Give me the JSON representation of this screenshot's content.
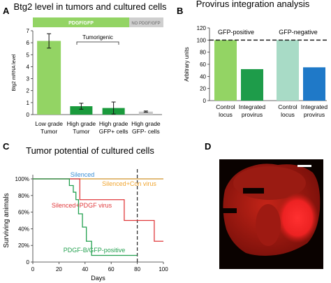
{
  "panels": {
    "A": {
      "letter": "A",
      "title": "Btg2 level in tumors and cultured cells",
      "legend_gfp": "PDGF/GFP",
      "legend_nogfp": "NO PDGF/GFP",
      "bracket_label": "Tumorigenic",
      "colors": {
        "light_green": "#93d464",
        "dark_green": "#1a9a3c",
        "grey": "#b9b9b9",
        "error": "#111111"
      }
    },
    "B": {
      "letter": "B",
      "title": "Provirus integration analysis",
      "label_pos": "GFP-positive",
      "label_neg": "GFP-negative",
      "colors": {
        "light_green": "#93d464",
        "dark_green": "#1e9c4a",
        "mint": "#a8dbc6",
        "blue": "#1f79c8"
      }
    },
    "C": {
      "letter": "C",
      "title": "Tumor potential of cultured cells",
      "annotations": {
        "silenced": "Silenced",
        "silenced_control": "Silenced+Con virus",
        "silenced_pdgf": "Silenced+PDGF virus",
        "pdgf_gfp": "PDGF-B/GFP-positive"
      },
      "colors": {
        "silenced": "#3a8fd6",
        "silenced_control": "#f0a530",
        "silenced_pdgf": "#e0393b",
        "pdgf_gfp": "#23a04f"
      }
    },
    "D": {
      "letter": "D",
      "colors": {
        "background": "#0a0200",
        "tissue": "#b21b14",
        "tumor": "#ff2a2a",
        "scale_bar": "#ffffff"
      }
    }
  },
  "chart_data": [
    {
      "panel": "A",
      "type": "bar",
      "title": "Btg2 level in tumors and cultured cells",
      "ylabel": "Btg2 mRNA level",
      "ylim": [
        0,
        7
      ],
      "yticks": [
        "0",
        "1",
        "2",
        "3",
        "4",
        "5",
        "6",
        "7"
      ],
      "categories": [
        [
          "Low grade",
          "Tumor"
        ],
        [
          "High grade",
          "Tumor"
        ],
        [
          "High grade",
          "GFP+ cells"
        ],
        [
          "High grade",
          "GFP- cells"
        ]
      ],
      "values": [
        6.15,
        0.7,
        0.55,
        0.25
      ],
      "errors": [
        0.6,
        0.25,
        0.5,
        0.05
      ],
      "colors": [
        "#93d464",
        "#1a9a3c",
        "#1a9a3c",
        "#c8c8c8"
      ]
    },
    {
      "panel": "B",
      "type": "bar",
      "title": "Provirus integration analysis",
      "ylabel": "Arbitrary units",
      "ylim": [
        0,
        120
      ],
      "yticks": [
        "0",
        "20",
        "40",
        "60",
        "80",
        "100",
        "120"
      ],
      "reference_line": 100,
      "categories": [
        [
          "Control",
          "locus"
        ],
        [
          "Integrated",
          "provirus"
        ],
        [
          "Control",
          "locus"
        ],
        [
          "Integrated",
          "provirus"
        ]
      ],
      "values": [
        100,
        52,
        100,
        55
      ],
      "colors": [
        "#93d464",
        "#1e9c4a",
        "#a8dbc6",
        "#1f79c8"
      ]
    },
    {
      "panel": "C",
      "type": "line",
      "title": "Tumor potential of cultured cells",
      "xlabel": "Days",
      "ylabel": "Surviving animals",
      "xlim": [
        0,
        100
      ],
      "ylim": [
        0,
        100
      ],
      "xticks": [
        "0",
        "20",
        "40",
        "60",
        "80",
        "100"
      ],
      "yticks": [
        "0",
        "20%",
        "40%",
        "60%",
        "80%",
        "100%"
      ],
      "vertical_dashed_line": 80,
      "series": [
        {
          "x": [
            0,
            100
          ],
          "y": [
            100,
            100
          ],
          "color": "#3a8fd6"
        },
        {
          "x": [
            0,
            100
          ],
          "y": [
            100,
            100
          ],
          "color": "#f0a530"
        },
        {
          "x": [
            0,
            36,
            36,
            70,
            70,
            93,
            93,
            100
          ],
          "y": [
            100,
            100,
            75,
            75,
            50,
            50,
            25,
            25
          ],
          "color": "#e0393b"
        },
        {
          "x": [
            0,
            28,
            28,
            31,
            31,
            33,
            33,
            35,
            35,
            38,
            38,
            41,
            41,
            45,
            45,
            80
          ],
          "y": [
            100,
            100,
            92,
            92,
            84,
            84,
            75,
            75,
            58,
            58,
            42,
            42,
            25,
            25,
            8,
            8
          ],
          "color": "#23a04f"
        }
      ]
    }
  ]
}
